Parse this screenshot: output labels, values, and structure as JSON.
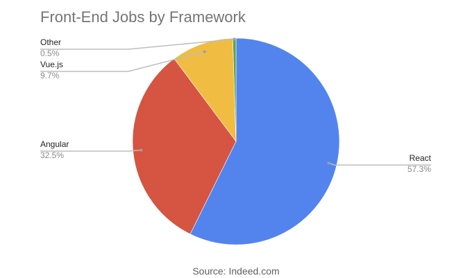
{
  "chart_data": {
    "type": "pie",
    "title": "Front-End Jobs by Framework",
    "source": "Source: Indeed.com",
    "slices": [
      {
        "label": "React",
        "value": 57.3,
        "value_label": "57.3%",
        "color": "#5384ed"
      },
      {
        "label": "Angular",
        "value": 32.5,
        "value_label": "32.5%",
        "color": "#d55442"
      },
      {
        "label": "Vue.js",
        "value": 9.7,
        "value_label": "9.7%",
        "color": "#f0bd42"
      },
      {
        "label": "Other",
        "value": 0.5,
        "value_label": "0.5%",
        "color": "#59a259"
      }
    ],
    "start_angle_deg": 0,
    "direction": "clockwise",
    "legend": "none"
  }
}
